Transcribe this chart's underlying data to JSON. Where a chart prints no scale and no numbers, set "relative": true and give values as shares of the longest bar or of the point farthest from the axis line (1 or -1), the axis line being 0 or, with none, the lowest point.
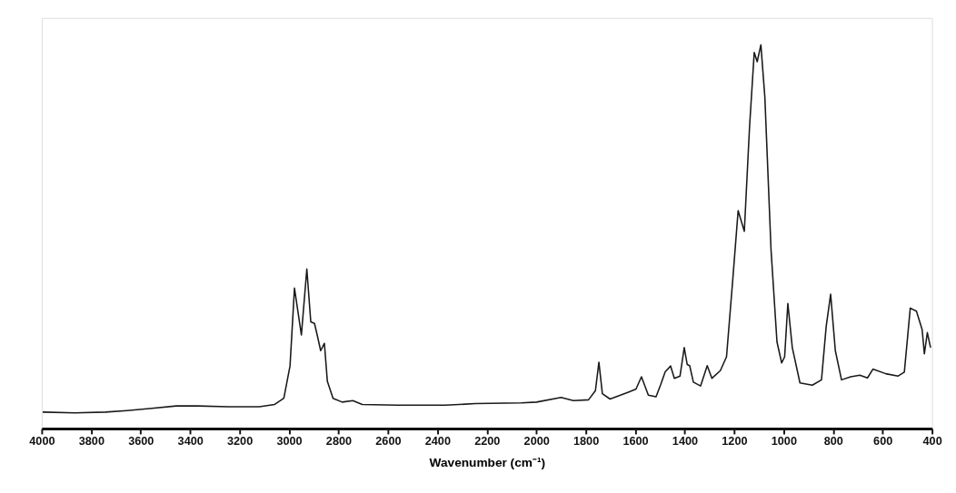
{
  "chart_data": {
    "type": "line",
    "relative": true,
    "xlabel": "Wavenumber (cm⁻¹)",
    "xlim": [
      4000,
      400
    ],
    "xticks": [
      4000,
      3800,
      3600,
      3400,
      3200,
      3000,
      2800,
      2600,
      2400,
      2200,
      2000,
      1800,
      1600,
      1400,
      1200,
      1000,
      800,
      600,
      400
    ],
    "tick_labels": "x",
    "line_style": "solid",
    "x": [
      3996,
      3866,
      3742,
      3655,
      3555,
      3456,
      3369,
      3245,
      3120,
      3058,
      3021,
      2996,
      2978,
      2950,
      2928,
      2912,
      2897,
      2884,
      2872,
      2857,
      2845,
      2822,
      2785,
      2742,
      2704,
      2561,
      2369,
      2247,
      2061,
      1999,
      1900,
      1850,
      1789,
      1761,
      1747,
      1733,
      1702,
      1628,
      1597,
      1575,
      1547,
      1516,
      1497,
      1479,
      1457,
      1442,
      1419,
      1402,
      1390,
      1380,
      1365,
      1336,
      1309,
      1290,
      1256,
      1231,
      1206,
      1184,
      1159,
      1138,
      1119,
      1107,
      1092,
      1076,
      1051,
      1027,
      1008,
      996,
      983,
      965,
      934,
      884,
      847,
      828,
      810,
      791,
      766,
      729,
      692,
      661,
      639,
      587,
      537,
      512,
      488,
      463,
      440,
      431,
      419,
      406
    ],
    "series": [
      {
        "color": "#1a1a1a",
        "values": [
          0.043,
          0.041,
          0.043,
          0.047,
          0.053,
          0.059,
          0.059,
          0.057,
          0.057,
          0.063,
          0.079,
          0.163,
          0.366,
          0.244,
          0.416,
          0.278,
          0.274,
          0.238,
          0.203,
          0.222,
          0.123,
          0.079,
          0.069,
          0.073,
          0.063,
          0.061,
          0.061,
          0.065,
          0.067,
          0.069,
          0.081,
          0.073,
          0.075,
          0.099,
          0.173,
          0.091,
          0.077,
          0.095,
          0.103,
          0.135,
          0.087,
          0.083,
          0.115,
          0.148,
          0.163,
          0.131,
          0.137,
          0.211,
          0.167,
          0.164,
          0.121,
          0.111,
          0.164,
          0.131,
          0.151,
          0.187,
          0.386,
          0.568,
          0.514,
          0.785,
          0.98,
          0.956,
          1.0,
          0.864,
          0.466,
          0.226,
          0.171,
          0.187,
          0.326,
          0.211,
          0.119,
          0.113,
          0.127,
          0.266,
          0.35,
          0.203,
          0.127,
          0.135,
          0.139,
          0.132,
          0.155,
          0.143,
          0.137,
          0.147,
          0.314,
          0.306,
          0.258,
          0.195,
          0.25,
          0.211
        ]
      }
    ]
  }
}
